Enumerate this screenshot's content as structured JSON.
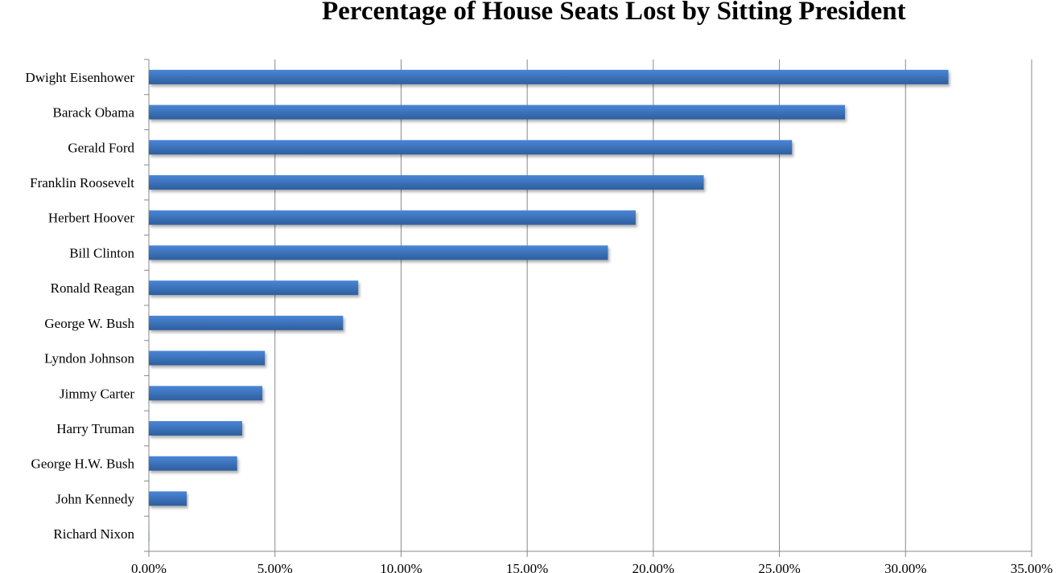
{
  "chart_data": {
    "type": "bar",
    "orientation": "horizontal",
    "title": "Percentage of House Seats Lost by Sitting President",
    "xlabel": "",
    "ylabel": "",
    "categories": [
      "Dwight Eisenhower",
      "Barack Obama",
      "Gerald Ford",
      "Franklin Roosevelt",
      "Herbert Hoover",
      "Bill Clinton",
      "Ronald Reagan",
      "George W. Bush",
      "Lyndon Johnson",
      "Jimmy Carter",
      "Harry Truman",
      "George H.W. Bush",
      "John Kennedy",
      "Richard Nixon"
    ],
    "values": [
      31.7,
      27.6,
      25.5,
      22.0,
      19.3,
      18.2,
      8.3,
      7.7,
      4.6,
      4.5,
      3.7,
      3.5,
      1.5,
      0.0
    ],
    "xlim": [
      0,
      35
    ],
    "xticks": [
      "0.00%",
      "5.00%",
      "10.00%",
      "15.00%",
      "20.00%",
      "25.00%",
      "30.00%",
      "35.00%"
    ],
    "grid": "vertical",
    "legend": "none",
    "bar_color": "#3a70bf"
  }
}
